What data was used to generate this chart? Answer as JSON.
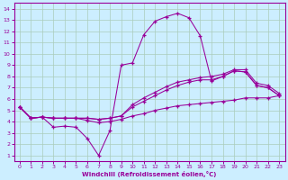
{
  "xlabel": "Windchill (Refroidissement éolien,°C)",
  "bg_color": "#cceeff",
  "line_color": "#990099",
  "grid_color": "#aaccbb",
  "xlim": [
    -0.5,
    23.5
  ],
  "ylim": [
    0.5,
    14.5
  ],
  "xticks": [
    0,
    1,
    2,
    3,
    4,
    5,
    6,
    7,
    8,
    9,
    10,
    11,
    12,
    13,
    14,
    15,
    16,
    17,
    18,
    19,
    20,
    21,
    22,
    23
  ],
  "yticks": [
    1,
    2,
    3,
    4,
    5,
    6,
    7,
    8,
    9,
    10,
    11,
    12,
    13,
    14
  ],
  "line1_x": [
    0,
    1,
    2,
    3,
    4,
    5,
    6,
    7,
    8,
    9,
    10,
    11,
    12,
    13,
    14,
    15,
    16,
    17,
    18,
    19,
    20,
    21,
    22,
    23
  ],
  "line1_y": [
    5.3,
    4.3,
    4.4,
    3.5,
    3.6,
    3.5,
    2.5,
    1.0,
    3.2,
    9.0,
    9.2,
    11.7,
    12.9,
    13.3,
    13.6,
    13.2,
    11.6,
    7.6,
    8.0,
    8.5,
    8.4,
    7.2,
    7.0,
    6.3
  ],
  "line2_x": [
    0,
    1,
    2,
    3,
    4,
    5,
    6,
    7,
    8,
    9,
    10,
    11,
    12,
    13,
    14,
    15,
    16,
    17,
    18,
    19,
    20,
    21,
    22,
    23
  ],
  "line2_y": [
    5.3,
    4.3,
    4.4,
    4.3,
    4.3,
    4.3,
    4.3,
    4.2,
    4.3,
    4.5,
    5.3,
    5.8,
    6.3,
    6.8,
    7.2,
    7.5,
    7.7,
    7.7,
    8.0,
    8.5,
    8.4,
    7.2,
    7.0,
    6.3
  ],
  "line3_x": [
    0,
    1,
    2,
    3,
    4,
    5,
    6,
    7,
    8,
    9,
    10,
    11,
    12,
    13,
    14,
    15,
    16,
    17,
    18,
    19,
    20,
    21,
    22,
    23
  ],
  "line3_y": [
    5.3,
    4.3,
    4.4,
    4.3,
    4.3,
    4.3,
    4.3,
    4.2,
    4.3,
    4.5,
    5.5,
    6.1,
    6.6,
    7.1,
    7.5,
    7.7,
    7.9,
    8.0,
    8.2,
    8.6,
    8.6,
    7.4,
    7.2,
    6.5
  ],
  "line4_x": [
    0,
    1,
    2,
    3,
    4,
    5,
    6,
    7,
    8,
    9,
    10,
    11,
    12,
    13,
    14,
    15,
    16,
    17,
    18,
    19,
    20,
    21,
    22,
    23
  ],
  "line4_y": [
    5.3,
    4.3,
    4.4,
    4.3,
    4.3,
    4.3,
    4.1,
    3.9,
    4.0,
    4.2,
    4.5,
    4.7,
    5.0,
    5.2,
    5.4,
    5.5,
    5.6,
    5.7,
    5.8,
    5.9,
    6.1,
    6.1,
    6.1,
    6.3
  ]
}
